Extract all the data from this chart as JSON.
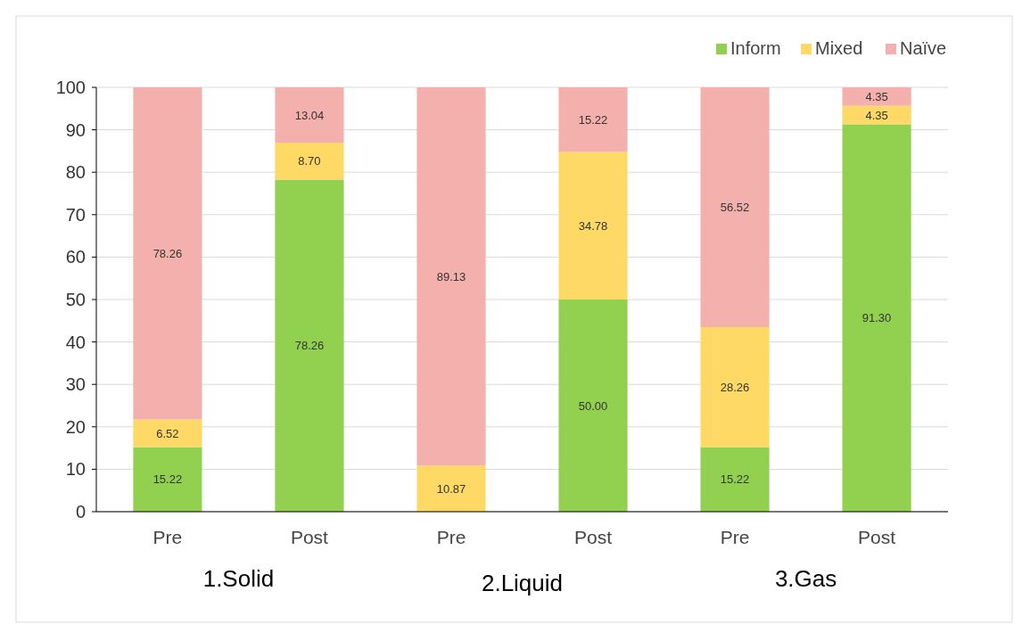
{
  "chart_data": {
    "type": "bar",
    "stacked": true,
    "categories": [
      "Pre",
      "Post",
      "Pre",
      "Post",
      "Pre",
      "Post"
    ],
    "series": [
      {
        "name": "Inform",
        "color": "#92d050",
        "values": [
          15.22,
          78.26,
          0,
          50.0,
          15.22,
          91.3
        ],
        "value_labels": [
          "15.22",
          "78.26",
          null,
          "50.00",
          "15.22",
          "91.30"
        ]
      },
      {
        "name": "Mixed",
        "color": "#ffd966",
        "values": [
          6.52,
          8.7,
          10.87,
          34.78,
          28.26,
          4.35
        ],
        "value_labels": [
          "6.52",
          "8.70",
          "10.87",
          "34.78",
          "28.26",
          "4.35"
        ]
      },
      {
        "name": "Naïve",
        "color": "#f4b0ac",
        "values": [
          78.26,
          13.04,
          89.13,
          15.22,
          56.52,
          4.35
        ],
        "value_labels": [
          "78.26",
          "13.04",
          "89.13",
          "15.22",
          "56.52",
          "4.35"
        ]
      }
    ],
    "annotations": [
      "1.Solid",
      "2.Liquid",
      "3.Gas"
    ],
    "ylim": [
      0,
      100
    ],
    "yticks": [
      0,
      10,
      20,
      30,
      40,
      50,
      60,
      70,
      80,
      90,
      100
    ],
    "grid": "y",
    "legend": "top right"
  }
}
